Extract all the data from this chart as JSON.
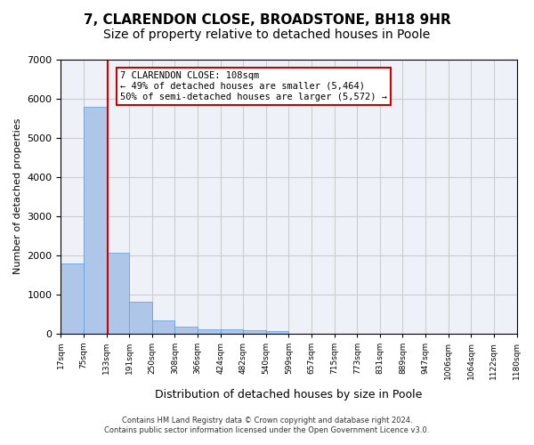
{
  "title": "7, CLARENDON CLOSE, BROADSTONE, BH18 9HR",
  "subtitle": "Size of property relative to detached houses in Poole",
  "xlabel": "Distribution of detached houses by size in Poole",
  "ylabel": "Number of detached properties",
  "bin_labels": [
    "17sqm",
    "75sqm",
    "133sqm",
    "191sqm",
    "250sqm",
    "308sqm",
    "366sqm",
    "424sqm",
    "482sqm",
    "540sqm",
    "599sqm",
    "657sqm",
    "715sqm",
    "773sqm",
    "831sqm",
    "889sqm",
    "947sqm",
    "1006sqm",
    "1064sqm",
    "1122sqm",
    "1180sqm"
  ],
  "bar_values": [
    1780,
    5780,
    2060,
    820,
    340,
    185,
    115,
    105,
    95,
    70,
    0,
    0,
    0,
    0,
    0,
    0,
    0,
    0,
    0,
    0
  ],
  "bar_color": "#aec6e8",
  "bar_edgecolor": "#5b9bd5",
  "bar_width": 1.0,
  "vline_x": 1.54,
  "vline_color": "#cc0000",
  "annotation_text": "7 CLARENDON CLOSE: 108sqm\n← 49% of detached houses are smaller (5,464)\n50% of semi-detached houses are larger (5,572) →",
  "annotation_box_color": "#ffffff",
  "annotation_box_edgecolor": "#cc0000",
  "ylim": [
    0,
    7000
  ],
  "yticks": [
    0,
    1000,
    2000,
    3000,
    4000,
    5000,
    6000,
    7000
  ],
  "grid_color": "#cccccc",
  "background_color": "#eef2f8",
  "footer_line1": "Contains HM Land Registry data © Crown copyright and database right 2024.",
  "footer_line2": "Contains public sector information licensed under the Open Government Licence v3.0.",
  "title_fontsize": 11,
  "subtitle_fontsize": 10
}
